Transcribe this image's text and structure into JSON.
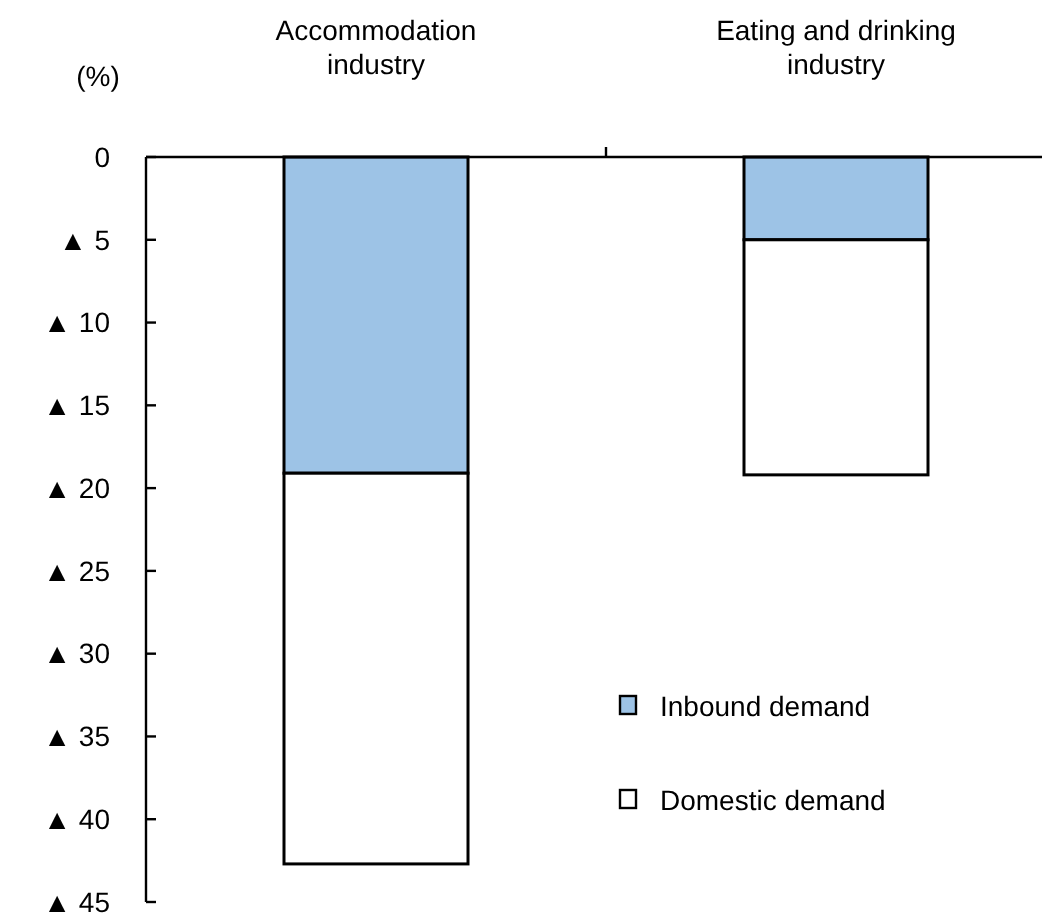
{
  "chart_data": {
    "type": "bar",
    "stacked": true,
    "ylabel": "(%)",
    "categories": [
      "Accommodation industry",
      "Eating and drinking industry"
    ],
    "series": [
      {
        "name": "Inbound demand",
        "color": "#9dc3e6",
        "values": [
          -19.1,
          -5.0
        ]
      },
      {
        "name": "Domestic demand",
        "color": "#ffffff",
        "values": [
          -23.6,
          -14.2
        ]
      }
    ],
    "ylim": [
      -45,
      0
    ],
    "yticks": [
      0,
      {
        "value": -5,
        "label": "▲ 5"
      },
      {
        "value": -10,
        "label": "▲ 10"
      },
      {
        "value": -15,
        "label": "▲ 15"
      },
      {
        "value": -20,
        "label": "▲ 20"
      },
      {
        "value": -25,
        "label": "▲ 25"
      },
      {
        "value": -30,
        "label": "▲ 30"
      },
      {
        "value": -35,
        "label": "▲ 35"
      },
      {
        "value": -40,
        "label": "▲ 40"
      },
      {
        "value": -45,
        "label": "▲ 45"
      }
    ],
    "grid": false,
    "legend": "bottom right"
  }
}
